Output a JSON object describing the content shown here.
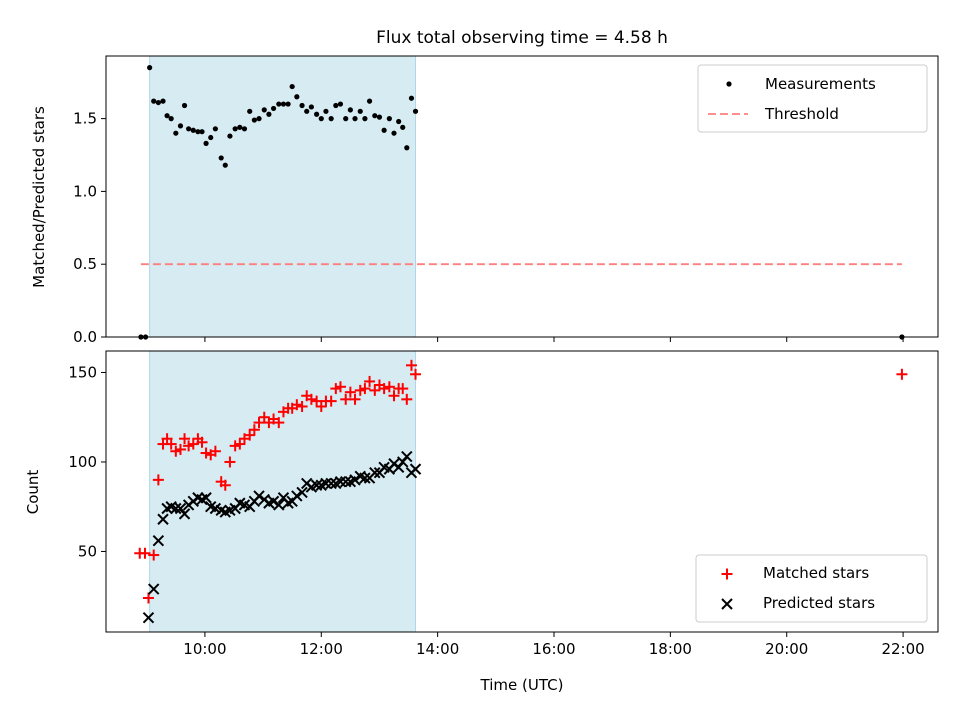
{
  "title": "Flux total observing time = 4.58 h",
  "colors": {
    "shade": "#add8e6",
    "measurement": "#000000",
    "threshold": "#ff7f7f",
    "matched": "#ff0000",
    "predicted": "#000000"
  },
  "chart_data": [
    {
      "type": "scatter",
      "ylabel": "Matched/Predicted stars",
      "xlim": [
        8.3,
        22.6
      ],
      "ylim": [
        0.0,
        1.93
      ],
      "y_ticks": [
        "0.0",
        "0.5",
        "1.0",
        "1.5"
      ],
      "legend_position": "top-right",
      "shaded_interval": [
        9.05,
        13.62
      ],
      "threshold": {
        "name": "Threshold",
        "y": 0.5,
        "x_range": [
          8.9,
          21.98
        ]
      },
      "series": [
        {
          "name": "Measurements",
          "marker": "dot",
          "points": [
            [
              8.9,
              0.0
            ],
            [
              8.98,
              0.0
            ],
            [
              9.05,
              1.85
            ],
            [
              9.12,
              1.62
            ],
            [
              9.2,
              1.61
            ],
            [
              9.28,
              1.62
            ],
            [
              9.35,
              1.52
            ],
            [
              9.42,
              1.5
            ],
            [
              9.5,
              1.4
            ],
            [
              9.58,
              1.45
            ],
            [
              9.65,
              1.59
            ],
            [
              9.72,
              1.43
            ],
            [
              9.8,
              1.42
            ],
            [
              9.88,
              1.41
            ],
            [
              9.95,
              1.41
            ],
            [
              10.02,
              1.33
            ],
            [
              10.1,
              1.37
            ],
            [
              10.18,
              1.43
            ],
            [
              10.28,
              1.23
            ],
            [
              10.35,
              1.18
            ],
            [
              10.43,
              1.38
            ],
            [
              10.52,
              1.43
            ],
            [
              10.6,
              1.44
            ],
            [
              10.68,
              1.43
            ],
            [
              10.77,
              1.55
            ],
            [
              10.85,
              1.49
            ],
            [
              10.93,
              1.5
            ],
            [
              11.02,
              1.56
            ],
            [
              11.1,
              1.53
            ],
            [
              11.18,
              1.57
            ],
            [
              11.27,
              1.6
            ],
            [
              11.35,
              1.6
            ],
            [
              11.43,
              1.6
            ],
            [
              11.5,
              1.72
            ],
            [
              11.58,
              1.65
            ],
            [
              11.67,
              1.59
            ],
            [
              11.75,
              1.55
            ],
            [
              11.83,
              1.58
            ],
            [
              11.92,
              1.53
            ],
            [
              12.0,
              1.5
            ],
            [
              12.08,
              1.55
            ],
            [
              12.17,
              1.5
            ],
            [
              12.25,
              1.59
            ],
            [
              12.33,
              1.6
            ],
            [
              12.42,
              1.5
            ],
            [
              12.5,
              1.56
            ],
            [
              12.58,
              1.5
            ],
            [
              12.67,
              1.55
            ],
            [
              12.75,
              1.5
            ],
            [
              12.83,
              1.62
            ],
            [
              12.92,
              1.52
            ],
            [
              13.0,
              1.51
            ],
            [
              13.08,
              1.42
            ],
            [
              13.17,
              1.5
            ],
            [
              13.25,
              1.4
            ],
            [
              13.33,
              1.48
            ],
            [
              13.4,
              1.44
            ],
            [
              13.47,
              1.3
            ],
            [
              13.55,
              1.64
            ],
            [
              13.62,
              1.55
            ],
            [
              21.98,
              0.0
            ]
          ]
        }
      ]
    },
    {
      "type": "scatter",
      "xlabel": "Time (UTC)",
      "ylabel": "Count",
      "xlim": [
        8.3,
        22.6
      ],
      "ylim": [
        5,
        162
      ],
      "x_ticks": [
        "10:00",
        "12:00",
        "14:00",
        "16:00",
        "18:00",
        "20:00",
        "22:00"
      ],
      "x_tick_values": [
        10,
        12,
        14,
        16,
        18,
        20,
        22
      ],
      "y_ticks": [
        "50",
        "100",
        "150"
      ],
      "legend_position": "bottom-right",
      "shaded_interval": [
        9.05,
        13.62
      ],
      "series": [
        {
          "name": "Matched stars",
          "marker": "plus",
          "points": [
            [
              8.88,
              49
            ],
            [
              8.97,
              49
            ],
            [
              9.03,
              24
            ],
            [
              9.12,
              48
            ],
            [
              9.2,
              90
            ],
            [
              9.28,
              110
            ],
            [
              9.35,
              113
            ],
            [
              9.42,
              110
            ],
            [
              9.5,
              106
            ],
            [
              9.58,
              107
            ],
            [
              9.65,
              113
            ],
            [
              9.72,
              109
            ],
            [
              9.8,
              110
            ],
            [
              9.88,
              113
            ],
            [
              9.95,
              111
            ],
            [
              10.02,
              105
            ],
            [
              10.1,
              104
            ],
            [
              10.18,
              106
            ],
            [
              10.28,
              89
            ],
            [
              10.35,
              87
            ],
            [
              10.43,
              100
            ],
            [
              10.52,
              109
            ],
            [
              10.6,
              110
            ],
            [
              10.68,
              113
            ],
            [
              10.77,
              115
            ],
            [
              10.85,
              118
            ],
            [
              10.93,
              122
            ],
            [
              11.02,
              125
            ],
            [
              11.1,
              122
            ],
            [
              11.18,
              124
            ],
            [
              11.27,
              122
            ],
            [
              11.35,
              128
            ],
            [
              11.43,
              130
            ],
            [
              11.5,
              130
            ],
            [
              11.58,
              132
            ],
            [
              11.67,
              131
            ],
            [
              11.75,
              137
            ],
            [
              11.83,
              135
            ],
            [
              11.92,
              134
            ],
            [
              12.0,
              131
            ],
            [
              12.08,
              134
            ],
            [
              12.17,
              134
            ],
            [
              12.25,
              141
            ],
            [
              12.33,
              142
            ],
            [
              12.42,
              135
            ],
            [
              12.5,
              139
            ],
            [
              12.58,
              135
            ],
            [
              12.67,
              140
            ],
            [
              12.75,
              141
            ],
            [
              12.83,
              145
            ],
            [
              12.92,
              140
            ],
            [
              13.0,
              143
            ],
            [
              13.08,
              141
            ],
            [
              13.17,
              142
            ],
            [
              13.25,
              137
            ],
            [
              13.33,
              141
            ],
            [
              13.4,
              141
            ],
            [
              13.47,
              135
            ],
            [
              13.55,
              154
            ],
            [
              13.62,
              149
            ],
            [
              21.98,
              149
            ]
          ]
        },
        {
          "name": "Predicted stars",
          "marker": "x",
          "points": [
            [
              9.03,
              13
            ],
            [
              9.12,
              29
            ],
            [
              9.2,
              56
            ],
            [
              9.28,
              68
            ],
            [
              9.35,
              74
            ],
            [
              9.42,
              75
            ],
            [
              9.5,
              74
            ],
            [
              9.58,
              74
            ],
            [
              9.65,
              71
            ],
            [
              9.72,
              76
            ],
            [
              9.8,
              78
            ],
            [
              9.88,
              80
            ],
            [
              9.95,
              79
            ],
            [
              10.02,
              80
            ],
            [
              10.1,
              75
            ],
            [
              10.18,
              74
            ],
            [
              10.28,
              73
            ],
            [
              10.35,
              72
            ],
            [
              10.43,
              73
            ],
            [
              10.52,
              74
            ],
            [
              10.6,
              77
            ],
            [
              10.68,
              76
            ],
            [
              10.77,
              75
            ],
            [
              10.85,
              78
            ],
            [
              10.93,
              81
            ],
            [
              11.02,
              79
            ],
            [
              11.1,
              77
            ],
            [
              11.18,
              78
            ],
            [
              11.27,
              76
            ],
            [
              11.35,
              80
            ],
            [
              11.43,
              77
            ],
            [
              11.5,
              78
            ],
            [
              11.58,
              81
            ],
            [
              11.67,
              83
            ],
            [
              11.75,
              88
            ],
            [
              11.83,
              86
            ],
            [
              11.92,
              87
            ],
            [
              12.0,
              87
            ],
            [
              12.08,
              88
            ],
            [
              12.17,
              88
            ],
            [
              12.25,
              88
            ],
            [
              12.33,
              89
            ],
            [
              12.42,
              89
            ],
            [
              12.5,
              89
            ],
            [
              12.58,
              90
            ],
            [
              12.67,
              92
            ],
            [
              12.75,
              91
            ],
            [
              12.83,
              91
            ],
            [
              12.92,
              94
            ],
            [
              13.0,
              94
            ],
            [
              13.08,
              97
            ],
            [
              13.17,
              96
            ],
            [
              13.25,
              99
            ],
            [
              13.33,
              97
            ],
            [
              13.4,
              100
            ],
            [
              13.47,
              103
            ],
            [
              13.55,
              94
            ],
            [
              13.62,
              96
            ]
          ]
        }
      ]
    }
  ]
}
